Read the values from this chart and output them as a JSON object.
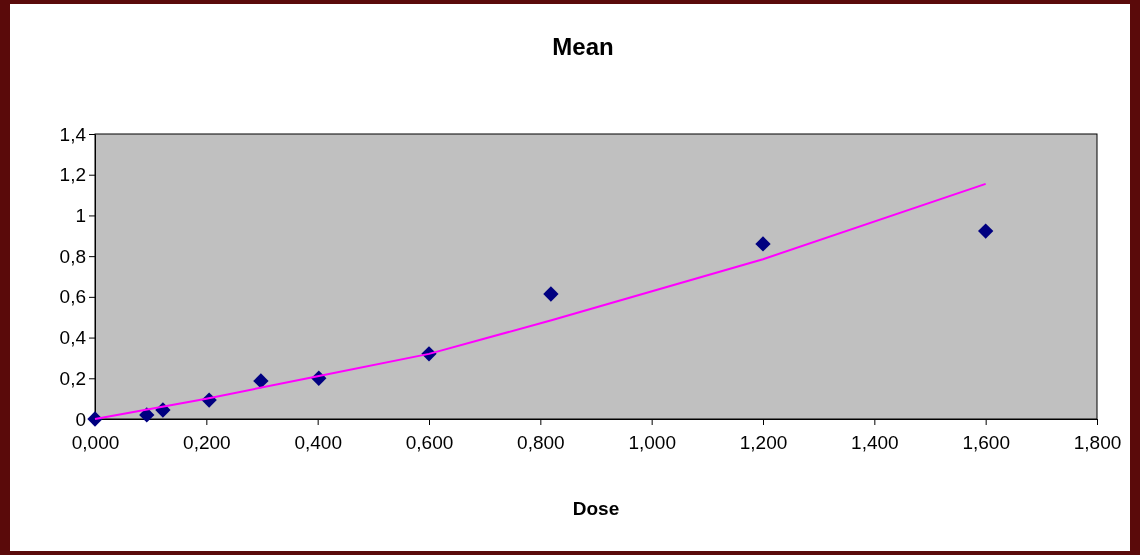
{
  "chart_data": {
    "type": "scatter",
    "title": "Mean",
    "xlabel": "Dose",
    "xlim": [
      0,
      1.8
    ],
    "ylim": [
      0,
      1.4
    ],
    "xticks": [
      {
        "value": 0,
        "label": "0,000"
      },
      {
        "value": 0.2,
        "label": "0,200"
      },
      {
        "value": 0.4,
        "label": "0,400"
      },
      {
        "value": 0.6,
        "label": "0,600"
      },
      {
        "value": 0.8,
        "label": "0,800"
      },
      {
        "value": 1.0,
        "label": "1,000"
      },
      {
        "value": 1.2,
        "label": "1,200"
      },
      {
        "value": 1.4,
        "label": "1,400"
      },
      {
        "value": 1.6,
        "label": "1,600"
      },
      {
        "value": 1.8,
        "label": "1,800"
      }
    ],
    "yticks": [
      0,
      {
        "value": 0.2,
        "label": "0,2"
      },
      {
        "value": 0.4,
        "label": "0,4"
      },
      {
        "value": 0.6,
        "label": "0,6"
      },
      {
        "value": 0.8,
        "label": "0,8"
      },
      1,
      {
        "value": 1.2,
        "label": "1,2"
      },
      {
        "value": 1.4,
        "label": "1,4"
      }
    ],
    "grid": false,
    "series": [
      {
        "marker": "diamond",
        "color": "#000080",
        "x": [
          0,
          0.093,
          0.122,
          0.205,
          0.298,
          0.402,
          0.6,
          0.819,
          1.2,
          1.6
        ],
        "values": [
          0,
          0.02,
          0.044,
          0.093,
          0.187,
          0.2,
          0.32,
          0.614,
          0.86,
          0.923
        ]
      },
      {
        "type": "line",
        "marker": "none",
        "line_style": "solid",
        "color": "#ff00ff",
        "x": [
          0,
          0.2,
          0.4,
          0.6,
          0.82,
          1.2,
          1.6
        ],
        "values": [
          0,
          0.1,
          0.21,
          0.32,
          0.485,
          0.785,
          1.155
        ]
      }
    ]
  }
}
